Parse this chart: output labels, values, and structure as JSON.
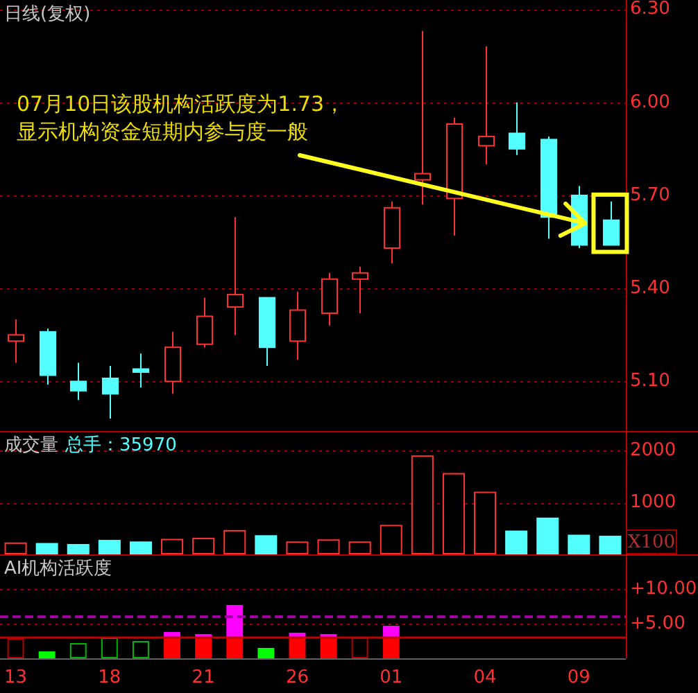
{
  "chart_data": [
    {
      "type": "candlestick",
      "title": "日线(复权)",
      "categories": [
        null,
        null,
        null,
        null,
        null,
        null,
        null,
        null,
        null,
        null,
        null,
        null,
        null,
        null,
        null,
        null,
        null,
        null,
        null,
        null
      ],
      "ohlc": [
        [
          5.23,
          5.3,
          5.16,
          5.25
        ],
        [
          5.26,
          5.27,
          5.09,
          5.12
        ],
        [
          5.1,
          5.16,
          5.04,
          5.07
        ],
        [
          5.11,
          5.15,
          4.98,
          5.06
        ],
        [
          5.14,
          5.19,
          5.08,
          5.13
        ],
        [
          5.1,
          5.26,
          5.06,
          5.21
        ],
        [
          5.22,
          5.37,
          5.21,
          5.31
        ],
        [
          5.34,
          5.63,
          5.25,
          5.38
        ],
        [
          5.37,
          5.37,
          5.15,
          5.21
        ],
        [
          5.23,
          5.39,
          5.17,
          5.33
        ],
        [
          5.32,
          5.45,
          5.28,
          5.43
        ],
        [
          5.43,
          5.47,
          5.32,
          5.45
        ],
        [
          5.53,
          5.68,
          5.48,
          5.66
        ],
        [
          5.75,
          6.23,
          5.67,
          5.77
        ],
        [
          5.69,
          5.95,
          5.57,
          5.93
        ],
        [
          5.86,
          6.18,
          5.8,
          5.89
        ],
        [
          5.9,
          6.0,
          5.83,
          5.85
        ],
        [
          5.88,
          5.89,
          5.56,
          5.63
        ],
        [
          5.7,
          5.73,
          5.53,
          5.54
        ],
        [
          5.62,
          5.68,
          5.54,
          5.54
        ]
      ],
      "colors": [
        "#ff3232",
        "#54ffff",
        "#54ffff",
        "#54ffff",
        "#54ffff",
        "#ff3232",
        "#ff3232",
        "#ff3232",
        "#54ffff",
        "#ff3232",
        "#ff3232",
        "#ff3232",
        "#ff3232",
        "#ff3232",
        "#ff3232",
        "#ff3232",
        "#54ffff",
        "#54ffff",
        "#54ffff",
        "#54ffff"
      ],
      "ylim": [
        4.94,
        6.33
      ],
      "yticks": [
        {
          "value": 5.1,
          "label": "5.10"
        },
        {
          "value": 5.4,
          "label": "5.40"
        },
        {
          "value": 5.7,
          "label": "5.70"
        },
        {
          "value": 6,
          "label": "6.00"
        },
        {
          "value": 6.3,
          "label": "6.30"
        }
      ],
      "grid": "y",
      "tick_labels": "y",
      "annotations": [
        "07月10日该股机构活跃度为1.73，显示机构资金短期内参与度一般"
      ]
    },
    {
      "type": "bar",
      "title": "成交量",
      "subtitle": "总手：35970",
      "ylabel": "X100",
      "categories": [
        null,
        null,
        null,
        null,
        null,
        null,
        null,
        null,
        null,
        null,
        null,
        null,
        null,
        null,
        null,
        null,
        null,
        null,
        null,
        null
      ],
      "series": [
        {
          "color": "#ff3232",
          "line_style": "solid",
          "values": [
            230,
            null,
            null,
            null,
            null,
            300,
            320,
            470,
            null,
            250,
            290,
            250,
            570,
            1910,
            1570,
            1210,
            null,
            null,
            null,
            null
          ]
        },
        {
          "color": "#54ffff",
          "values": [
            null,
            220,
            200,
            280,
            250,
            null,
            null,
            null,
            370,
            null,
            null,
            null,
            null,
            null,
            null,
            null,
            460,
            710,
            380,
            360
          ]
        }
      ],
      "ylim": [
        0,
        2380
      ],
      "yticks": [
        1000,
        2000
      ],
      "grid": "y",
      "tick_labels": "y"
    },
    {
      "type": "bar",
      "title": "AI机构活跃度",
      "categories": [
        "13",
        null,
        null,
        "18",
        null,
        null,
        "21",
        null,
        null,
        "26",
        null,
        null,
        "01",
        null,
        null,
        "04",
        null,
        null,
        "09",
        null
      ],
      "stacked": true,
      "series": [
        {
          "color": "#ff0000",
          "values": [
            null,
            null,
            null,
            null,
            null,
            3,
            3,
            3,
            null,
            3,
            3,
            null,
            3,
            null,
            null,
            null,
            null,
            null,
            null,
            null
          ]
        },
        {
          "color": "#ff00ff",
          "values": [
            null,
            null,
            null,
            null,
            null,
            0.8,
            0.5,
            4.7,
            null,
            0.7,
            0.5,
            null,
            1.7,
            null,
            null,
            null,
            null,
            null,
            null,
            null
          ]
        },
        {
          "color": "#00ff00",
          "values": [
            null,
            1.0,
            null,
            null,
            null,
            null,
            null,
            null,
            1.5,
            null,
            null,
            null,
            null,
            null,
            null,
            null,
            null,
            null,
            null,
            null
          ]
        },
        {
          "color": "#00b400",
          "line_style": "solid",
          "values": [
            null,
            null,
            2.2,
            3.0,
            2.5,
            null,
            null,
            null,
            null,
            null,
            null,
            null,
            null,
            null,
            null,
            null,
            null,
            null,
            null,
            null
          ]
        },
        {
          "color": "#b40000",
          "line_style": "solid",
          "values": [
            2.9,
            null,
            null,
            null,
            null,
            null,
            null,
            null,
            null,
            null,
            null,
            3.0,
            null,
            null,
            null,
            null,
            null,
            null,
            null,
            null
          ]
        }
      ],
      "ylim": [
        0,
        15
      ],
      "yticks": [
        {
          "value": 5,
          "label": "+5.00"
        },
        {
          "value": 10,
          "label": "+10.00"
        }
      ],
      "grid": "y",
      "ref_lines": [
        {
          "axis": "y",
          "value": 3,
          "color": "#c00000"
        },
        {
          "axis": "y",
          "value": 6,
          "color": "#a000a0",
          "line_style": "dashed"
        }
      ]
    }
  ]
}
